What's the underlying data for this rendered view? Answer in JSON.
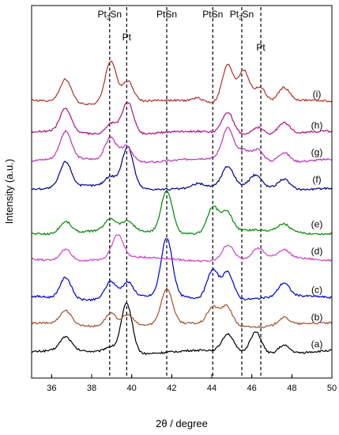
{
  "chart_data": {
    "type": "line",
    "xlabel": "2θ / degree",
    "ylabel": "Intensity (a.u.)",
    "xlim": [
      35,
      50
    ],
    "xticks": [
      "36",
      "38",
      "40",
      "42",
      "44",
      "46",
      "48",
      "50"
    ],
    "reference_lines": [
      {
        "x": 38.9,
        "label_main": "Pt",
        "label_sub": "3",
        "label_rest": "Sn"
      },
      {
        "x": 39.75,
        "label_main": "Pt",
        "label_sub": "",
        "label_rest": ""
      },
      {
        "x": 41.75,
        "label_main": "PtSn",
        "label_sub": "",
        "label_rest": ""
      },
      {
        "x": 44.05,
        "label_main": "PtSn",
        "label_sub": "",
        "label_rest": ""
      },
      {
        "x": 45.5,
        "label_main": "Pt",
        "label_sub": "3",
        "label_rest": "Sn"
      },
      {
        "x": 46.45,
        "label_main": "Pt",
        "label_sub": "",
        "label_rest": ""
      }
    ],
    "series": [
      {
        "name": "(a)",
        "color": "#000000",
        "baseline": 0.2,
        "peaks": [
          [
            36.7,
            0.35
          ],
          [
            38.9,
            0.15
          ],
          [
            39.75,
            1.3
          ],
          [
            44.8,
            0.45
          ],
          [
            46.2,
            0.55
          ],
          [
            47.6,
            0.22
          ]
        ]
      },
      {
        "name": "(b)",
        "color": "#a0522d",
        "baseline": 0.9,
        "peaks": [
          [
            36.7,
            0.35
          ],
          [
            38.95,
            0.35
          ],
          [
            39.8,
            0.3
          ],
          [
            41.75,
            0.9
          ],
          [
            44.05,
            0.45
          ],
          [
            44.75,
            0.5
          ],
          [
            47.6,
            0.2
          ]
        ]
      },
      {
        "name": "(c)",
        "color": "#0000cc",
        "baseline": 1.6,
        "peaks": [
          [
            36.7,
            0.55
          ],
          [
            38.95,
            0.45
          ],
          [
            39.8,
            0.4
          ],
          [
            41.75,
            1.5
          ],
          [
            44.05,
            0.75
          ],
          [
            44.8,
            0.7
          ],
          [
            47.6,
            0.35
          ]
        ]
      },
      {
        "name": "(d)",
        "color": "#cc44cc",
        "baseline": 2.6,
        "peaks": [
          [
            36.7,
            0.3
          ],
          [
            39.3,
            0.6
          ],
          [
            44.8,
            0.4
          ],
          [
            46.3,
            0.25
          ],
          [
            47.6,
            0.2
          ]
        ]
      },
      {
        "name": "(e)",
        "color": "#008800",
        "baseline": 3.3,
        "peaks": [
          [
            36.7,
            0.3
          ],
          [
            38.95,
            0.3
          ],
          [
            39.8,
            0.25
          ],
          [
            41.75,
            1.1
          ],
          [
            44.05,
            0.65
          ],
          [
            44.75,
            0.5
          ],
          [
            47.6,
            0.2
          ]
        ]
      },
      {
        "name": "(f)",
        "color": "#00008b",
        "baseline": 4.45,
        "peaks": [
          [
            36.7,
            0.65
          ],
          [
            38.95,
            0.25
          ],
          [
            39.8,
            1.05
          ],
          [
            43.3,
            0.1
          ],
          [
            44.8,
            0.5
          ],
          [
            46.2,
            0.3
          ],
          [
            47.6,
            0.25
          ]
        ]
      },
      {
        "name": "(g)",
        "color": "#bb33bb",
        "baseline": 5.15,
        "peaks": [
          [
            36.7,
            0.7
          ],
          [
            38.95,
            0.6
          ],
          [
            39.75,
            0.4
          ],
          [
            44.8,
            0.8
          ],
          [
            45.6,
            0.25
          ],
          [
            46.3,
            0.3
          ],
          [
            47.6,
            0.25
          ]
        ]
      },
      {
        "name": "(h)",
        "color": "#aa1188",
        "baseline": 5.85,
        "peaks": [
          [
            36.7,
            0.6
          ],
          [
            39.0,
            0.3
          ],
          [
            39.8,
            0.85
          ],
          [
            44.8,
            0.55
          ],
          [
            46.3,
            0.2
          ],
          [
            47.6,
            0.3
          ]
        ]
      },
      {
        "name": "(i)",
        "color": "#b03030",
        "baseline": 6.65,
        "peaks": [
          [
            36.7,
            0.6
          ],
          [
            38.95,
            1.1
          ],
          [
            39.8,
            0.55
          ],
          [
            43.3,
            0.1
          ],
          [
            44.8,
            1.0
          ],
          [
            45.6,
            0.85
          ],
          [
            46.4,
            0.4
          ],
          [
            47.6,
            0.35
          ]
        ]
      }
    ]
  }
}
